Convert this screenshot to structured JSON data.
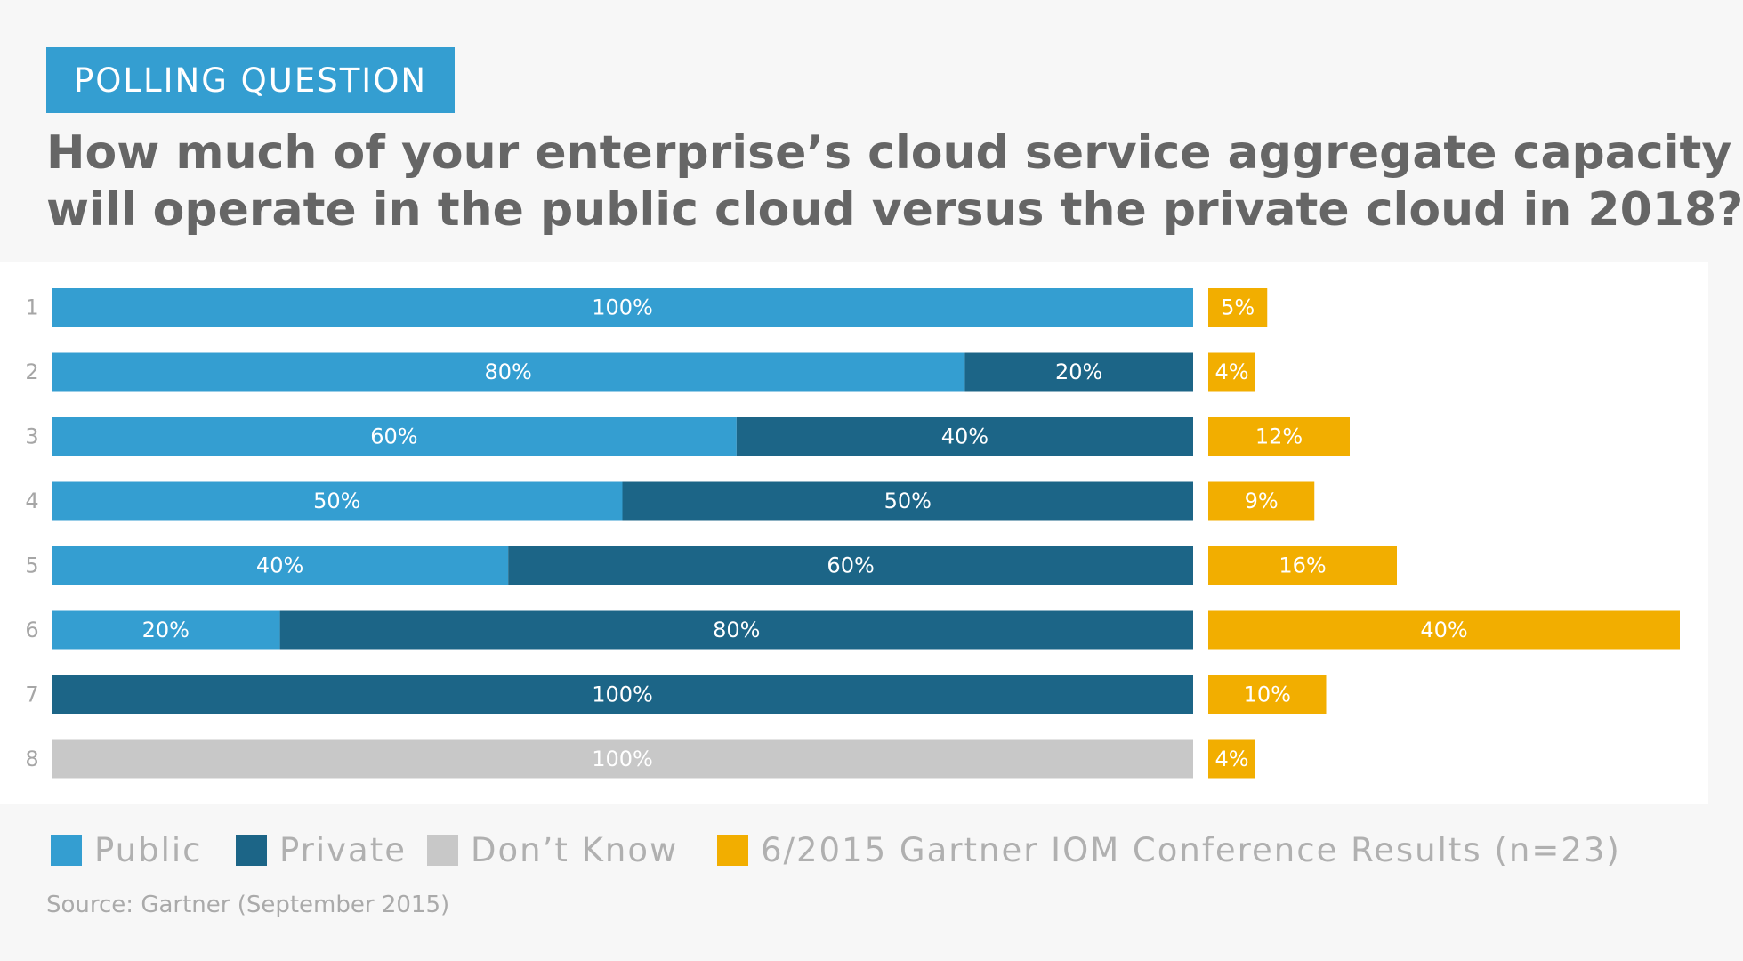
{
  "header": {
    "badge": "POLLING QUESTION",
    "question_line1": "How much of your enterprise’s cloud service aggregate capacity",
    "question_line2": "will operate in the public cloud versus the private cloud in 2018?"
  },
  "chart_data": {
    "type": "bar",
    "orientation": "horizontal",
    "stacked": true,
    "categories": [
      "1",
      "2",
      "3",
      "4",
      "5",
      "6",
      "7",
      "8"
    ],
    "series": [
      {
        "name": "Public",
        "values": [
          100,
          80,
          60,
          50,
          40,
          20,
          0,
          0
        ],
        "labels": [
          "100%",
          "80%",
          "60%",
          "50%",
          "40%",
          "20%",
          "",
          ""
        ]
      },
      {
        "name": "Private",
        "values": [
          0,
          20,
          40,
          50,
          60,
          80,
          100,
          0
        ],
        "labels": [
          "",
          "20%",
          "40%",
          "50%",
          "60%",
          "80%",
          "100%",
          ""
        ]
      },
      {
        "name": "Don’t Know",
        "values": [
          0,
          0,
          0,
          0,
          0,
          0,
          0,
          100
        ],
        "labels": [
          "",
          "",
          "",
          "",
          "",
          "",
          "",
          "100%"
        ]
      }
    ],
    "results_series": {
      "name": "6/2015 Gartner IOM Conference Results (n=23)",
      "values": [
        5,
        4,
        12,
        9,
        16,
        40,
        10,
        4
      ],
      "labels": [
        "5%",
        "4%",
        "12%",
        "9%",
        "16%",
        "40%",
        "10%",
        "4%"
      ]
    },
    "grid": false,
    "legend_position": "bottom"
  },
  "legend": [
    {
      "label": "Public",
      "color": "#349ed1"
    },
    {
      "label": "Private",
      "color": "#1c6587"
    },
    {
      "label": "Don’t Know",
      "color": "#c8c8c8"
    },
    {
      "label": "6/2015 Gartner IOM Conference Results (n=23)",
      "color": "#f2ae00"
    }
  ],
  "colors": {
    "public": "#349ed1",
    "private": "#1c6587",
    "dont_know": "#c8c8c8",
    "results": "#f2ae00",
    "row_label": "#a6a6a6",
    "bar_text": "#ffffff"
  },
  "footer": {
    "source": "Source: Gartner (September 2015)"
  }
}
